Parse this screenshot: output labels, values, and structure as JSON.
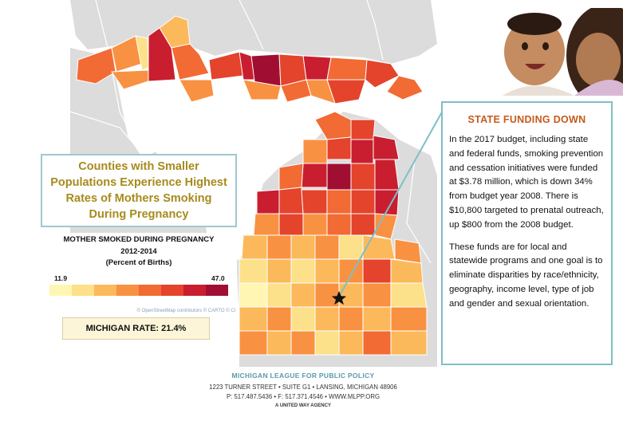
{
  "colors": {
    "water": "#ffffff",
    "land": "#dcdcdc",
    "road": "#ffffff",
    "accent_gold": "#a68b1c",
    "accent_orange": "#c55a1c",
    "border_teal": "#7fbfc6",
    "scale": [
      "#fff6b3",
      "#fde08a",
      "#fcb95b",
      "#f99142",
      "#f26a34",
      "#e4432c",
      "#c91e2f",
      "#a00f32"
    ]
  },
  "map_title": {
    "lines": [
      "Counties with Smaller",
      "Populations Experience Highest",
      "Rates of Mothers Smoking",
      "During Pregnancy"
    ]
  },
  "legend": {
    "title": "MOTHER SMOKED DURING PREGNANCY",
    "years": "2012-2014",
    "unit": "(Percent of Births)",
    "min": "11.9",
    "max": "47.0",
    "attribution": "© OpenStreetMap contributors © CARTO © Cl"
  },
  "rate": {
    "text": "MICHIGAN RATE: 21.4%"
  },
  "marker": {
    "icon": "star-icon"
  },
  "photo": {
    "icon": "mother-baby-photo"
  },
  "info": {
    "heading": "STATE FUNDING DOWN",
    "p1": "In the 2017 budget, including state and federal funds, smoking prevention and cessation initiatives were funded at $3.78 million, which is down 34% from budget year 2008. There is $10,800 targeted to prenatal outreach, up $800 from the 2008 budget.",
    "p2": "These funds are for local and statewide programs and one goal is to eliminate disparities by race/ethnicity, geography, income level, type of job and gender and sexual orientation."
  },
  "footer": {
    "org": "MICHIGAN LEAGUE FOR PUBLIC POLICY",
    "address": "1223 TURNER STREET • SUITE G1 • LANSING, MICHIGAN  48906",
    "contact": "P: 517.487.5436  •  F: 517.371.4546  •  WWW.MLPP.ORG",
    "tagline": "A UNITED WAY AGENCY"
  }
}
